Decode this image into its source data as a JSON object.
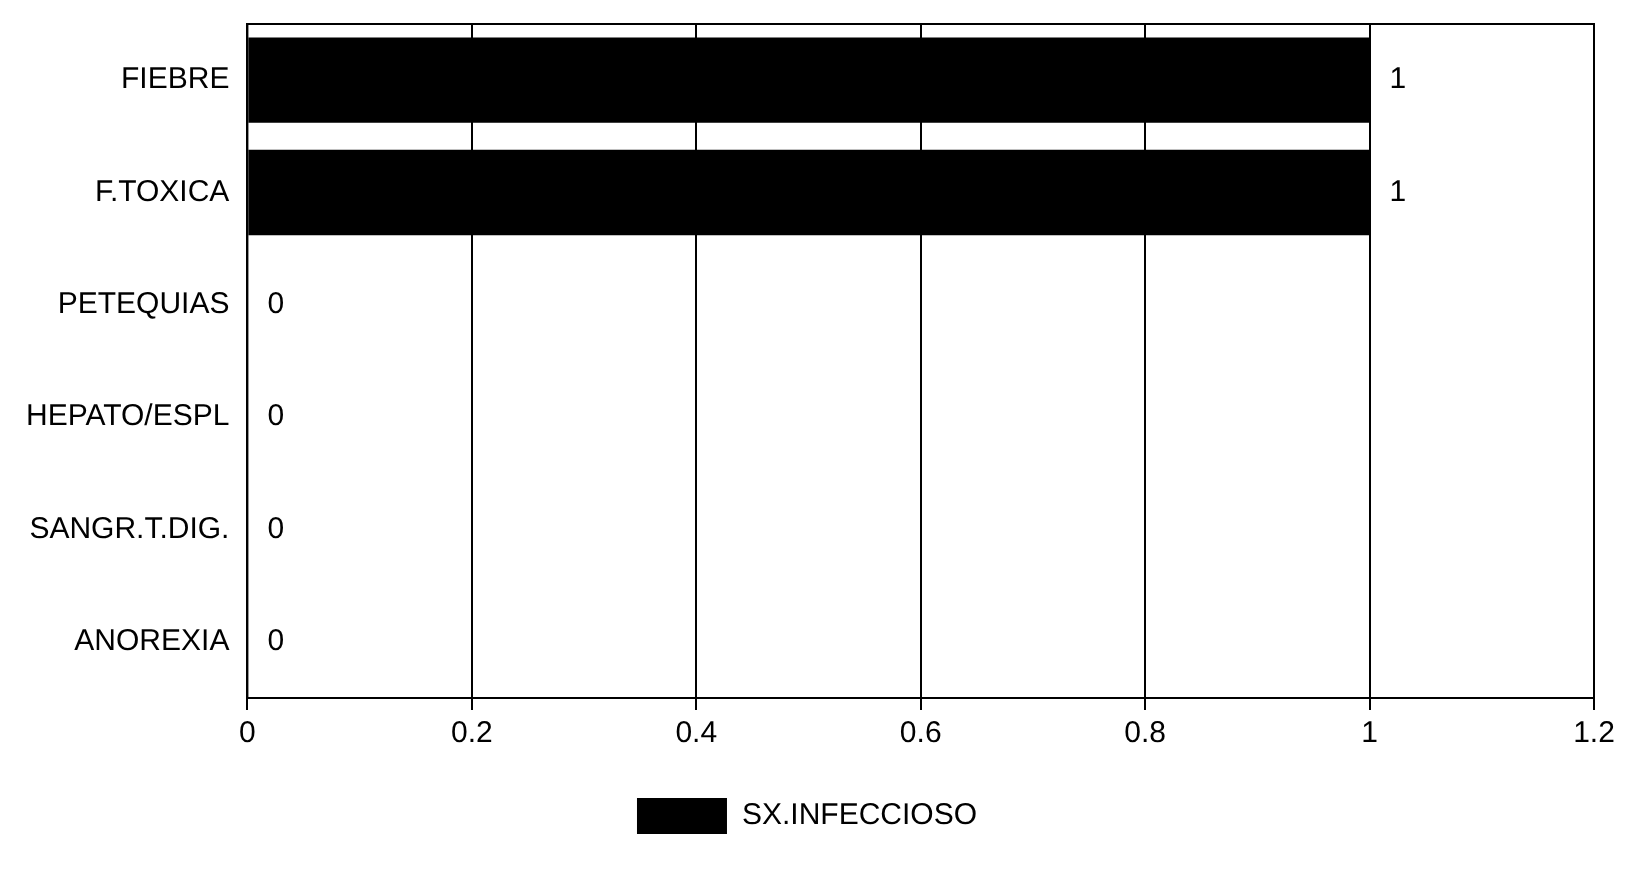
{
  "chart_data": {
    "type": "bar",
    "orientation": "horizontal",
    "categories": [
      "FIEBRE",
      "F.TOXICA",
      "PETEQUIAS",
      "HEPATO/ESPL",
      "SANGR.T.DIG.",
      "ANOREXIA"
    ],
    "series": [
      {
        "name": "SX.INFECCIOSO",
        "color": "#000000",
        "values": [
          1,
          1,
          0,
          0,
          0,
          0
        ]
      }
    ],
    "xlim": [
      0,
      1.2
    ],
    "xticks": [
      0,
      0.2,
      0.4,
      0.6,
      0.8,
      1,
      1.2
    ],
    "grid": "x",
    "legend": "bottom",
    "data_labels": true
  }
}
